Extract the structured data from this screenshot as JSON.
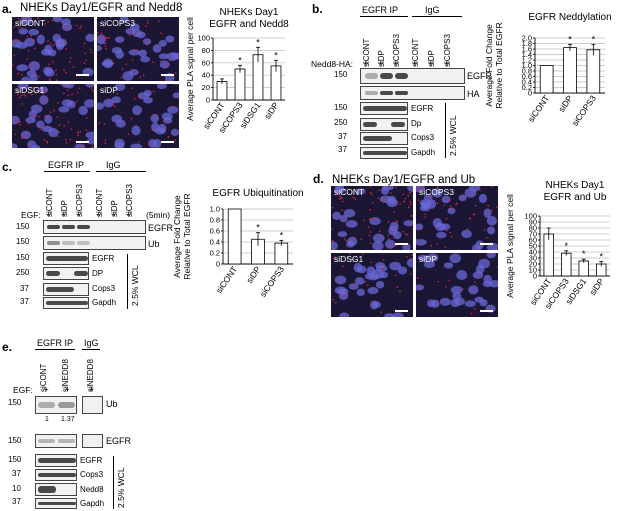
{
  "panel_a": {
    "label": "a.",
    "title": "NHEKs Day1/EGFR and Nedd8",
    "images": [
      "siCONT",
      "siCOPS3",
      "siDSG1",
      "siDP"
    ]
  },
  "panel_b": {
    "label": "b.",
    "ip_label": "EGFR IP",
    "igg_label": "IgG",
    "prefix": "Nedd8-HA:",
    "plus": "+",
    "lanes": [
      "siCONT",
      "siDP",
      "siCOPS3",
      "siCONT",
      "siDP",
      "siCOPS3"
    ],
    "wcl_label": "2.5% WCL",
    "rows": [
      {
        "mw": "150",
        "name": "EGFR"
      },
      {
        "mw": "",
        "name": "HA"
      },
      {
        "mw": "150",
        "name": "EGFR"
      },
      {
        "mw": "250",
        "name": "Dp"
      },
      {
        "mw": "37",
        "name": "Cops3"
      },
      {
        "mw": "37",
        "name": "Gapdh"
      }
    ]
  },
  "panel_c": {
    "label": "c.",
    "ip_label": "EGFR IP",
    "igg_label": "IgG",
    "prefix": "EGF:",
    "plus": "+",
    "time": "(5min)",
    "lanes": [
      "siCONT",
      "siDP",
      "siCOPS3",
      "siCONT",
      "siDP",
      "siCOPS3"
    ],
    "wcl_label": "2.5% WCL",
    "rows": [
      {
        "mw": "150",
        "name": "EGFR"
      },
      {
        "mw": "150",
        "name": "Ub"
      },
      {
        "mw": "150",
        "name": "EGFR"
      },
      {
        "mw": "250",
        "name": "DP"
      },
      {
        "mw": "37",
        "name": "Cops3"
      },
      {
        "mw": "37",
        "name": "Gapdh"
      }
    ]
  },
  "panel_d": {
    "label": "d.",
    "title": "NHEKs Day1/EGFR and Ub",
    "images": [
      "siCONT",
      "siCOPS3",
      "siDSG1",
      "siDP"
    ]
  },
  "panel_e": {
    "label": "e.",
    "ip_label": "EGFR IP",
    "igg_label": "IgG",
    "prefix": "EGF:",
    "plus": "+",
    "lanes": [
      "siCONT",
      "siNEDD8",
      "siNEDD8"
    ],
    "quant": [
      "1",
      "1.37"
    ],
    "wcl_label": "2.5% WCL",
    "rows": [
      {
        "mw": "150",
        "name": "Ub"
      },
      {
        "mw": "150",
        "name": "EGFR"
      },
      {
        "mw": "150",
        "name": "EGFR"
      },
      {
        "mw": "37",
        "name": "Cops3"
      },
      {
        "mw": "10",
        "name": "Nedd8"
      },
      {
        "mw": "37",
        "name": "Gapdh"
      }
    ]
  },
  "colors": {
    "bar": "#ffffff",
    "stroke": "#000000",
    "grid": "#bdbdbd",
    "micro_bg": "#1a1633",
    "nuclei": "#6a68d8",
    "puncta": "#d8283a"
  },
  "chart_data": [
    {
      "type": "bar",
      "id": "a",
      "title_lines": [
        "NHEKs Day1",
        "EGFR and Nedd8"
      ],
      "ylabel": "Average PLA signal per cell",
      "categories": [
        "siCONT",
        "siCOPS3",
        "siDSG1",
        "siDP"
      ],
      "values": [
        30,
        50,
        73,
        55
      ],
      "errors": [
        4,
        6,
        12,
        9
      ],
      "significant": [
        false,
        true,
        true,
        true
      ],
      "star": "*",
      "ylim": [
        0,
        100
      ],
      "yticks": [
        "0",
        "20",
        "40",
        "60",
        "80",
        "100"
      ],
      "grid": true
    },
    {
      "type": "bar",
      "id": "b",
      "title_lines": [
        "EGFR Neddylation"
      ],
      "ylabel_lines": [
        "Average Fold Change",
        "Relative to Total EGFR"
      ],
      "categories": [
        "siCONT",
        "siDP",
        "siCOPS3"
      ],
      "values": [
        1.0,
        1.65,
        1.57
      ],
      "errors": [
        0,
        0.12,
        0.2
      ],
      "significant": [
        false,
        true,
        true
      ],
      "star": "*",
      "ylim": [
        0,
        2.0
      ],
      "yticks": [
        "0",
        "0.2",
        "0.4",
        "0.6",
        "0.8",
        "1.0",
        "1.2",
        "1.4",
        "1.6",
        "1.8",
        "2.0"
      ],
      "grid": true
    },
    {
      "type": "bar",
      "id": "c",
      "title_lines": [
        "EGFR Ubiquitination"
      ],
      "ylabel_lines": [
        "Average Fold Change",
        "Relative to Total EGFR"
      ],
      "categories": [
        "siCONT",
        "siDP",
        "siCOPS3"
      ],
      "values": [
        1.0,
        0.45,
        0.38
      ],
      "errors": [
        0,
        0.12,
        0.05
      ],
      "significant": [
        false,
        true,
        true
      ],
      "star": "*",
      "ylim": [
        0,
        1.0
      ],
      "yticks": [
        "0",
        "0.2",
        "0.4",
        "0.6",
        "0.8",
        "1.0"
      ],
      "grid": true
    },
    {
      "type": "bar",
      "id": "d",
      "title_lines": [
        "NHEKs Day1",
        "EGFR and Ub"
      ],
      "ylabel": "Average PLA signal per cell",
      "categories": [
        "siCONT",
        "siCOPS3",
        "siDSG1",
        "siDP"
      ],
      "values": [
        70,
        38,
        25,
        20
      ],
      "errors": [
        10,
        4,
        3,
        4
      ],
      "significant": [
        false,
        true,
        true,
        true
      ],
      "star": "*",
      "ylim": [
        0,
        100
      ],
      "yticks": [
        "0",
        "10",
        "20",
        "30",
        "40",
        "50",
        "60",
        "70",
        "80",
        "90",
        "100"
      ],
      "grid": true
    }
  ]
}
